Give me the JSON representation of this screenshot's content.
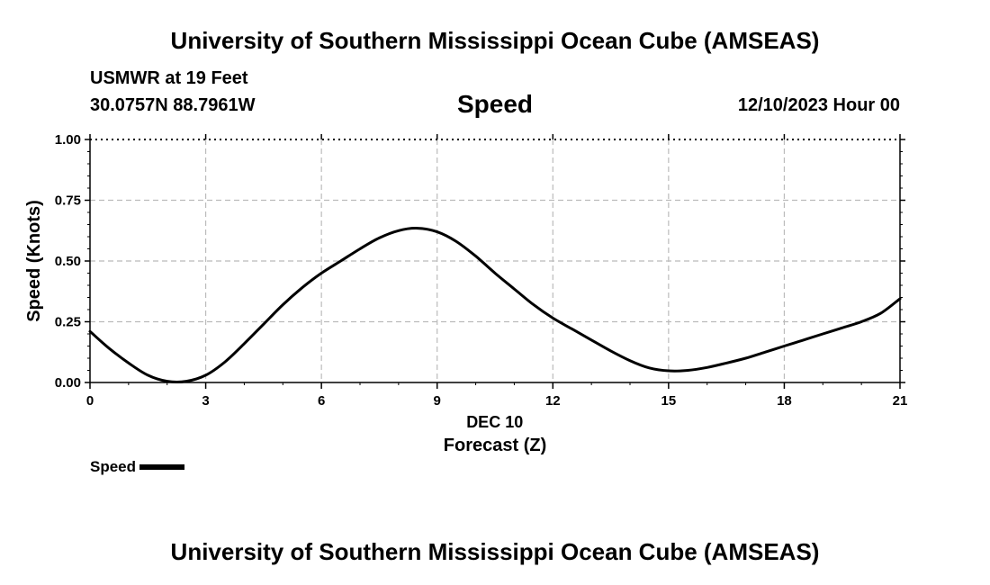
{
  "header": {
    "title": "University of Southern Mississippi Ocean Cube (AMSEAS)",
    "station": "USMWR at 19 Feet",
    "coordinates": "30.0757N  88.7961W",
    "variable": "Speed",
    "datetime": "12/10/2023 Hour 00"
  },
  "footer": {
    "title": "University of Southern Mississippi Ocean Cube (AMSEAS)"
  },
  "chart_data": {
    "type": "line",
    "title": "Speed",
    "xlabel": "Forecast (Z)",
    "xsublabel": "DEC 10",
    "ylabel": "Speed (Knots)",
    "xlim": [
      0,
      21
    ],
    "ylim": [
      0,
      1
    ],
    "xticks": [
      0,
      3,
      6,
      9,
      12,
      15,
      18,
      21
    ],
    "xtick_labels": [
      "0",
      "3",
      "6",
      "9",
      "12",
      "15",
      "18",
      "21"
    ],
    "yticks": [
      0,
      0.25,
      0.5,
      0.75,
      1.0
    ],
    "ytick_labels": [
      "0.00",
      "0.25",
      "0.50",
      "0.75",
      "1.00"
    ],
    "grid": true,
    "series": [
      {
        "name": "Speed",
        "color": "#000000",
        "x": [
          0,
          0.5,
          1,
          1.5,
          2,
          2.5,
          3,
          3.5,
          4,
          4.5,
          5,
          5.5,
          6,
          6.5,
          7,
          7.5,
          8,
          8.5,
          9,
          9.5,
          10,
          10.5,
          11,
          11.5,
          12,
          12.5,
          13,
          13.5,
          14,
          14.5,
          15,
          15.5,
          16,
          16.5,
          17,
          17.5,
          18,
          18.5,
          19,
          19.5,
          20,
          20.5,
          21
        ],
        "y": [
          0.21,
          0.14,
          0.08,
          0.03,
          0.005,
          0.005,
          0.03,
          0.085,
          0.16,
          0.24,
          0.32,
          0.39,
          0.45,
          0.5,
          0.55,
          0.595,
          0.625,
          0.635,
          0.62,
          0.58,
          0.52,
          0.45,
          0.385,
          0.32,
          0.265,
          0.22,
          0.175,
          0.13,
          0.09,
          0.06,
          0.048,
          0.05,
          0.062,
          0.08,
          0.1,
          0.125,
          0.15,
          0.175,
          0.2,
          0.225,
          0.25,
          0.285,
          0.345
        ]
      }
    ],
    "legend": {
      "label": "Speed",
      "position": "bottom-left"
    }
  }
}
